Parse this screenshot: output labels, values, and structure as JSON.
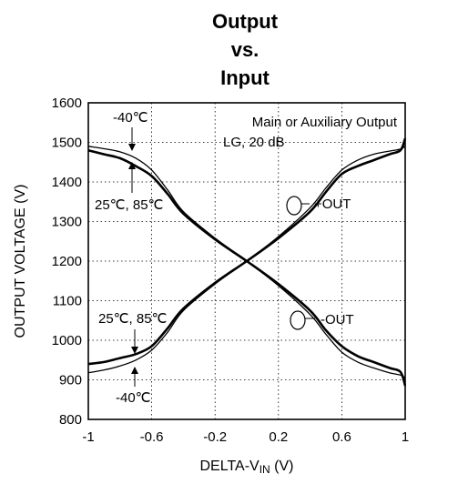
{
  "chart_data": {
    "type": "line",
    "title": [
      "Output",
      "vs.",
      "Input"
    ],
    "xlabel": "DELTA-V",
    "xlabel_sub": "IN",
    "xlabel_unit": " (V)",
    "ylabel": "OUTPUT VOLTAGE (V)",
    "xlim": [
      -1,
      1
    ],
    "ylim": [
      800,
      1600
    ],
    "xticks": [
      -1,
      -0.6,
      -0.2,
      0.2,
      0.6,
      1
    ],
    "xtick_labels": [
      "-1",
      "-0.6",
      "-0.2",
      "0.2",
      "0.6",
      "1"
    ],
    "yticks": [
      800,
      900,
      1000,
      1100,
      1200,
      1300,
      1400,
      1500,
      1600
    ],
    "grid": "dotted",
    "annotations": {
      "mode": "Main or Auxiliary Output",
      "lg": "LG, 20 dB",
      "plus_out": "+OUT",
      "minus_out": "-OUT",
      "temp_cold_top": "-40℃",
      "temp_hot_top": "25℃, 85℃",
      "temp_hot_bottom": "25℃, 85℃",
      "temp_cold_bottom": "-40℃"
    },
    "series": [
      {
        "name": "+OUT",
        "values": [
          {
            "x": -1.0,
            "y": 940
          },
          {
            "x": -0.9,
            "y": 945
          },
          {
            "x": -0.8,
            "y": 955
          },
          {
            "x": -0.7,
            "y": 965
          },
          {
            "x": -0.6,
            "y": 985
          },
          {
            "x": -0.5,
            "y": 1030
          },
          {
            "x": -0.4,
            "y": 1080
          },
          {
            "x": -0.2,
            "y": 1145
          },
          {
            "x": 0.0,
            "y": 1200
          },
          {
            "x": 0.2,
            "y": 1258
          },
          {
            "x": 0.4,
            "y": 1325
          },
          {
            "x": 0.5,
            "y": 1375
          },
          {
            "x": 0.6,
            "y": 1420
          },
          {
            "x": 0.7,
            "y": 1440
          },
          {
            "x": 0.8,
            "y": 1455
          },
          {
            "x": 0.9,
            "y": 1470
          },
          {
            "x": 0.97,
            "y": 1480
          },
          {
            "x": 1.0,
            "y": 1510
          }
        ]
      },
      {
        "name": "+OUT -40℃",
        "values": [
          {
            "x": -1.0,
            "y": 918
          },
          {
            "x": -0.9,
            "y": 925
          },
          {
            "x": -0.8,
            "y": 935
          },
          {
            "x": -0.7,
            "y": 950
          },
          {
            "x": -0.6,
            "y": 975
          },
          {
            "x": -0.5,
            "y": 1020
          },
          {
            "x": -0.4,
            "y": 1075
          },
          {
            "x": -0.2,
            "y": 1142
          },
          {
            "x": 0.0,
            "y": 1200
          },
          {
            "x": 0.2,
            "y": 1262
          },
          {
            "x": 0.4,
            "y": 1335
          },
          {
            "x": 0.5,
            "y": 1385
          },
          {
            "x": 0.6,
            "y": 1430
          },
          {
            "x": 0.7,
            "y": 1455
          },
          {
            "x": 0.8,
            "y": 1470
          },
          {
            "x": 0.9,
            "y": 1478
          },
          {
            "x": 0.97,
            "y": 1483
          },
          {
            "x": 1.0,
            "y": 1490
          }
        ]
      },
      {
        "name": "-OUT",
        "values": [
          {
            "x": -1.0,
            "y": 1480
          },
          {
            "x": -0.9,
            "y": 1470
          },
          {
            "x": -0.8,
            "y": 1460
          },
          {
            "x": -0.7,
            "y": 1440
          },
          {
            "x": -0.6,
            "y": 1415
          },
          {
            "x": -0.5,
            "y": 1370
          },
          {
            "x": -0.4,
            "y": 1320
          },
          {
            "x": -0.2,
            "y": 1255
          },
          {
            "x": 0.0,
            "y": 1200
          },
          {
            "x": 0.2,
            "y": 1142
          },
          {
            "x": 0.4,
            "y": 1075
          },
          {
            "x": 0.5,
            "y": 1025
          },
          {
            "x": 0.6,
            "y": 985
          },
          {
            "x": 0.7,
            "y": 960
          },
          {
            "x": 0.8,
            "y": 945
          },
          {
            "x": 0.9,
            "y": 930
          },
          {
            "x": 0.97,
            "y": 920
          },
          {
            "x": 1.0,
            "y": 885
          }
        ]
      },
      {
        "name": "-OUT -40℃",
        "values": [
          {
            "x": -1.0,
            "y": 1490
          },
          {
            "x": -0.9,
            "y": 1484
          },
          {
            "x": -0.8,
            "y": 1476
          },
          {
            "x": -0.7,
            "y": 1460
          },
          {
            "x": -0.6,
            "y": 1430
          },
          {
            "x": -0.5,
            "y": 1380
          },
          {
            "x": -0.4,
            "y": 1325
          },
          {
            "x": -0.2,
            "y": 1258
          },
          {
            "x": 0.0,
            "y": 1200
          },
          {
            "x": 0.2,
            "y": 1138
          },
          {
            "x": 0.4,
            "y": 1065
          },
          {
            "x": 0.5,
            "y": 1015
          },
          {
            "x": 0.6,
            "y": 970
          },
          {
            "x": 0.7,
            "y": 945
          },
          {
            "x": 0.8,
            "y": 930
          },
          {
            "x": 0.9,
            "y": 918
          },
          {
            "x": 0.97,
            "y": 912
          },
          {
            "x": 1.0,
            "y": 905
          }
        ]
      }
    ]
  }
}
